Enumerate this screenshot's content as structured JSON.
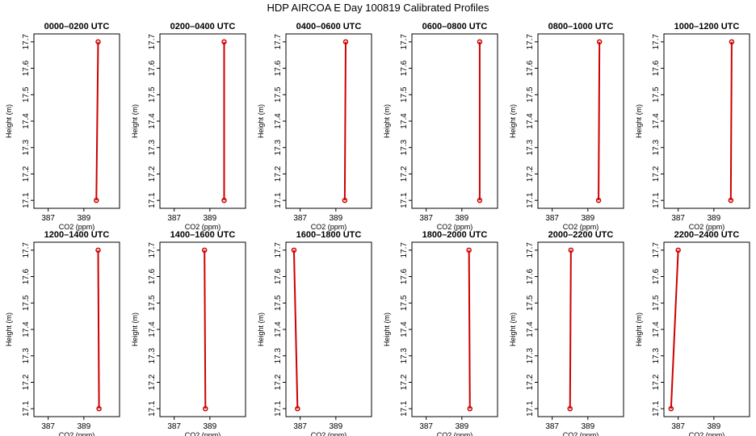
{
  "chart_data": {
    "type": "line",
    "title": "HDP AIRCOA E  Day 100819  Calibrated Profiles",
    "xlabel": "CO2 (ppm)",
    "ylabel": "Height (m)",
    "xlim": [
      386.2,
      391.0
    ],
    "ylim": [
      17.07,
      17.73
    ],
    "xticks": [
      387,
      389
    ],
    "xtick_labels": [
      "387",
      "389"
    ],
    "yticks": [
      17.1,
      17.2,
      17.3,
      17.4,
      17.5,
      17.6,
      17.7
    ],
    "ytick_labels": [
      "17.1",
      "17.2",
      "17.3",
      "17.4",
      "17.5",
      "17.6",
      "17.7"
    ],
    "series_color": "#cc0000",
    "marker": "open-circle",
    "panels": [
      {
        "title": "0000–0200 UTC",
        "points": [
          {
            "x": 389.7,
            "y": 17.1
          },
          {
            "x": 389.8,
            "y": 17.7
          }
        ]
      },
      {
        "title": "0200–0400 UTC",
        "points": [
          {
            "x": 389.8,
            "y": 17.1
          },
          {
            "x": 389.8,
            "y": 17.7
          }
        ]
      },
      {
        "title": "0400–0600 UTC",
        "points": [
          {
            "x": 389.5,
            "y": 17.1
          },
          {
            "x": 389.55,
            "y": 17.7
          }
        ]
      },
      {
        "title": "0600–0800 UTC",
        "points": [
          {
            "x": 390.0,
            "y": 17.1
          },
          {
            "x": 390.0,
            "y": 17.7
          }
        ]
      },
      {
        "title": "0800–1000 UTC",
        "points": [
          {
            "x": 389.6,
            "y": 17.1
          },
          {
            "x": 389.65,
            "y": 17.7
          }
        ]
      },
      {
        "title": "1000–1200 UTC",
        "points": [
          {
            "x": 389.95,
            "y": 17.1
          },
          {
            "x": 390.0,
            "y": 17.7
          }
        ]
      },
      {
        "title": "1200–1400 UTC",
        "points": [
          {
            "x": 389.85,
            "y": 17.1
          },
          {
            "x": 389.8,
            "y": 17.7
          }
        ]
      },
      {
        "title": "1400–1600 UTC",
        "points": [
          {
            "x": 388.75,
            "y": 17.1
          },
          {
            "x": 388.7,
            "y": 17.7
          }
        ]
      },
      {
        "title": "1600–1800 UTC",
        "points": [
          {
            "x": 386.85,
            "y": 17.1
          },
          {
            "x": 386.65,
            "y": 17.7
          }
        ]
      },
      {
        "title": "1800–2000 UTC",
        "points": [
          {
            "x": 389.45,
            "y": 17.1
          },
          {
            "x": 389.4,
            "y": 17.7
          }
        ]
      },
      {
        "title": "2000–2200 UTC",
        "points": [
          {
            "x": 388.0,
            "y": 17.1
          },
          {
            "x": 388.05,
            "y": 17.7
          }
        ]
      },
      {
        "title": "2200–2400 UTC",
        "points": [
          {
            "x": 386.6,
            "y": 17.1
          },
          {
            "x": 387.0,
            "y": 17.7
          }
        ]
      }
    ]
  }
}
